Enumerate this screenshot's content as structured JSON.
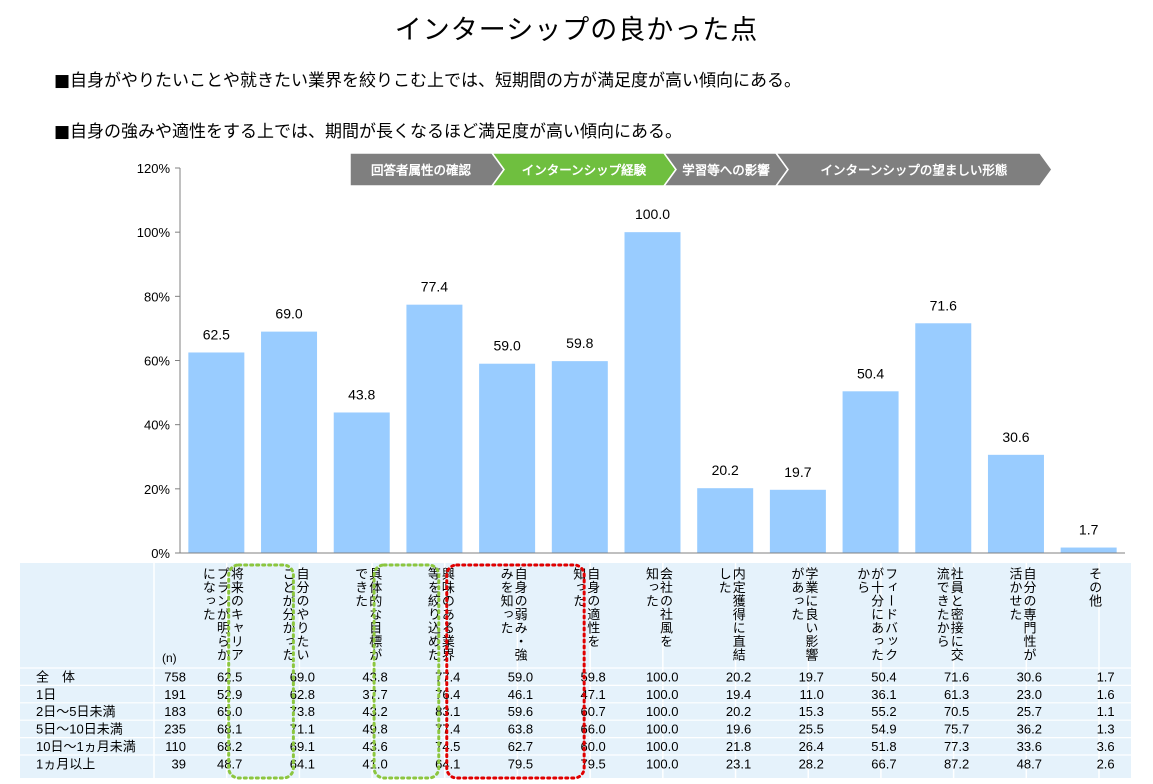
{
  "title": "インターシップの良かった点",
  "bullets": [
    "■自身がやりたいことや就きたい業界を絞りこむ上では、短期間の方が満足度が高い傾向にある。",
    "■自身の強みや適性をする上では、期間が長くなるほど満足度が高い傾向にある。"
  ],
  "steps": [
    {
      "label": "回答者属性の確認",
      "active": false
    },
    {
      "label": "インターンシップ経験",
      "active": true
    },
    {
      "label": "学習等への影響",
      "active": false
    },
    {
      "label": "インターンシップの望ましい形態",
      "active": false
    }
  ],
  "colors": {
    "bar": "#99ccff",
    "step_inactive": "#7f7f7f",
    "step_active": "#6fbf3f",
    "table_bg": "#e5f2fb",
    "highlight_green": "#8cc63f",
    "highlight_red": "#e00000"
  },
  "chart_data": {
    "type": "bar",
    "ylim": [
      0,
      120
    ],
    "yticks": [
      "0%",
      "20%",
      "40%",
      "60%",
      "80%",
      "100%",
      "120%"
    ],
    "categories": [
      "将来のキャリアプランが明らかになった",
      "自分のやりたいことが分かった",
      "具体的な目標ができた",
      "興味のある業界等を絞り込めた",
      "自身の弱み・強みを知った",
      "自身の適性を知った",
      "会社の社風を知った",
      "内定獲得に直結した",
      "学業に良い影響があった",
      "フィードバックが十分にあったから",
      "社員と密接に交流できたから",
      "自分の専門性が活かせた",
      "その他"
    ],
    "category_lines": [
      [
        "将来のキャリア",
        "プランが明らか",
        "になった"
      ],
      [
        "自分のやりたい",
        "ことが分かった"
      ],
      [
        "具体的な目標が",
        "できた"
      ],
      [
        "興味のある業界",
        "等を絞り込めた"
      ],
      [
        "自身の弱み・強",
        "みを知った"
      ],
      [
        "自身の適性を",
        "知った"
      ],
      [
        "会社の社風を",
        "知った"
      ],
      [
        "内定獲得に直結",
        "した"
      ],
      [
        "学業に良い影響",
        "があった"
      ],
      [
        "フィードバック",
        "が十分にあった",
        "から"
      ],
      [
        "社員と密接に交",
        "流できたから"
      ],
      [
        "自分の専門性が",
        "活かせた"
      ],
      [
        "その他"
      ]
    ],
    "values": [
      62.5,
      69.0,
      43.8,
      77.4,
      59.0,
      59.8,
      100.0,
      20.2,
      19.7,
      50.4,
      71.6,
      30.6,
      1.7
    ],
    "value_labels": [
      "62.5",
      "69.0",
      "43.8",
      "77.4",
      "59.0",
      "59.8",
      "100.0",
      "20.2",
      "19.7",
      "50.4",
      "71.6",
      "30.6",
      "1.7"
    ]
  },
  "table": {
    "n_header": "(n)",
    "rows": [
      {
        "label": "全　体",
        "n": "758",
        "values": [
          "62.5",
          "69.0",
          "43.8",
          "77.4",
          "59.0",
          "59.8",
          "100.0",
          "20.2",
          "19.7",
          "50.4",
          "71.6",
          "30.6",
          "1.7"
        ]
      },
      {
        "label": "1日",
        "n": "191",
        "values": [
          "52.9",
          "62.8",
          "37.7",
          "76.4",
          "46.1",
          "47.1",
          "100.0",
          "19.4",
          "11.0",
          "36.1",
          "61.3",
          "23.0",
          "1.6"
        ]
      },
      {
        "label": "2日～5日未満",
        "n": "183",
        "values": [
          "65.0",
          "73.8",
          "43.2",
          "83.1",
          "59.6",
          "60.7",
          "100.0",
          "20.2",
          "15.3",
          "55.2",
          "70.5",
          "25.7",
          "1.1"
        ]
      },
      {
        "label": "5日～10日未満",
        "n": "235",
        "values": [
          "68.1",
          "71.1",
          "49.8",
          "77.4",
          "63.8",
          "66.0",
          "100.0",
          "19.6",
          "25.5",
          "54.9",
          "75.7",
          "36.2",
          "1.3"
        ]
      },
      {
        "label": "10日～1ヵ月未満",
        "n": "110",
        "values": [
          "68.2",
          "69.1",
          "43.6",
          "74.5",
          "62.7",
          "60.0",
          "100.0",
          "21.8",
          "26.4",
          "51.8",
          "77.3",
          "33.6",
          "3.6"
        ]
      },
      {
        "label": "1ヵ月以上",
        "n": "39",
        "values": [
          "48.7",
          "64.1",
          "41.0",
          "64.1",
          "79.5",
          "79.5",
          "100.0",
          "23.1",
          "28.2",
          "66.7",
          "87.2",
          "48.7",
          "2.6"
        ]
      }
    ]
  }
}
